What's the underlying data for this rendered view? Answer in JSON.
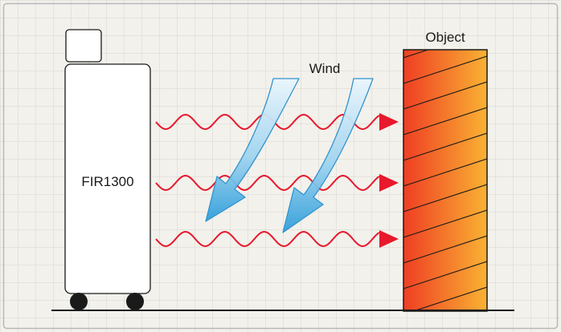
{
  "labels": {
    "device": "FIR1300",
    "target": "Object",
    "wind": "Wind"
  },
  "colors": {
    "background": "#f2f1ec",
    "grid": "#d6d5d0",
    "frame": "#b8b8b8",
    "device_fill": "#ffffff",
    "device_stroke": "#1a1a1a",
    "wave": "#e8192c",
    "object_dark": "#ef3e23",
    "object_light": "#f9b233",
    "hatch": "#1a1a1a",
    "wind_fill_top": "#e8f5fd",
    "wind_fill_bottom": "#3aa9df",
    "wind_stroke": "#2a8fcc",
    "ground": "#1a1a1a"
  },
  "icons": {
    "heat_waves": "wavy-arrow",
    "wind": "curved-arrow",
    "wheels": "circle"
  }
}
